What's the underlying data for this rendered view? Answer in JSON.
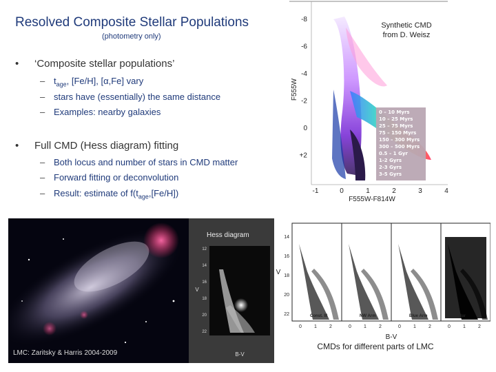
{
  "slide": {
    "title": "Resolved Composite Stellar Populations",
    "subtitle": "(photometry only)"
  },
  "bullets": [
    {
      "text": "‘Composite stellar populations’",
      "subs": [
        {
          "pre": "t",
          "sub": "age",
          "post": ", [Fe/H], [α,Fe] vary"
        },
        {
          "text": "stars have (essentially) the same distance"
        },
        {
          "text": "Examples: nearby galaxies"
        }
      ]
    },
    {
      "text": "Full CMD (Hess diagram) fitting",
      "subs": [
        {
          "text": "Both locus and number of stars in CMD matter"
        },
        {
          "text": "Forward fitting or deconvolution"
        },
        {
          "pre": "Result: estimate of  f(t",
          "sub": "age",
          "post": ",[Fe/H])"
        }
      ]
    }
  ],
  "synthetic_cmd": {
    "caption_line1": "Synthetic CMD",
    "caption_line2": "from D. Weisz",
    "y_label": "F555W",
    "x_label": "F555W-F814W",
    "y_ticks": [
      "-8",
      "-6",
      "-4",
      "-2",
      "0",
      "+2"
    ],
    "x_ticks": [
      "-1",
      "0",
      "1",
      "2",
      "3",
      "4"
    ],
    "legend": [
      {
        "label": "0 – 10 Myrs",
        "color": "#ffffff"
      },
      {
        "label": "10 – 25 Myrs",
        "color": "#ffd24a"
      },
      {
        "label": "25 – 75 Myrs",
        "color": "#ffffff"
      },
      {
        "label": "75 – 150 Myrs",
        "color": "#e0e0e0"
      },
      {
        "label": "150 – 300 Myrs",
        "color": "#ff3ca0"
      },
      {
        "label": "300 – 500 Myrs",
        "color": "#5ac8ff"
      },
      {
        "label": "0.5 – 1 Gyr",
        "color": "#ffffff"
      },
      {
        "label": "1-2 Gyrs",
        "color": "#ffd24a"
      },
      {
        "label": "2-3 Gyrs",
        "color": "#ff9b3a"
      },
      {
        "label": "3-5 Gyrs",
        "color": "#ffffff"
      }
    ]
  },
  "lmc_image": {
    "credit": "LMC: Zaritsky & Harris 2004-2009"
  },
  "hess": {
    "label": "Hess diagram",
    "x_label": "B-V",
    "y_label": "V",
    "y_ticks": [
      "12",
      "14",
      "16",
      "18",
      "20",
      "22"
    ]
  },
  "lmc_cmds": {
    "caption": "CMDs for different parts of LMC",
    "x_label": "B-V",
    "y_label": "V",
    "y_ticks": [
      "14",
      "16",
      "18",
      "20",
      "22"
    ],
    "x_ticks": [
      "0",
      "1",
      "2"
    ],
    "panels": [
      "Const. III",
      "NW Arm",
      "Blue Arm",
      "Bar"
    ]
  }
}
